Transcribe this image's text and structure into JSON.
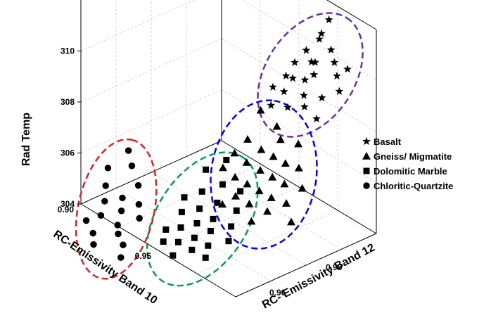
{
  "chart_data": {
    "type": "scatter",
    "title": "",
    "zlabel": "Rad Temp",
    "xlabel": "RC-Emissivity Band 10",
    "ylabel": "RC- Emissivity Band 12",
    "z_ticks": [
      "304",
      "306",
      "308",
      "310"
    ],
    "x_ticks": [
      "0.90",
      "0.95"
    ],
    "y_ticks": [
      "0.96",
      "0.98"
    ],
    "grid": true,
    "legend_position": "right",
    "series": [
      {
        "name": "Basalt",
        "marker": "star",
        "color": "#000000",
        "ellipse_color": "#7030a0",
        "points": [
          [
            0.973,
            0.998,
            311.5
          ],
          [
            0.97,
            0.997,
            310.9
          ],
          [
            0.978,
            0.996,
            310.6
          ],
          [
            0.965,
            0.999,
            310.4
          ],
          [
            0.982,
            0.995,
            310.3
          ],
          [
            0.975,
            0.992,
            310.2
          ],
          [
            0.962,
            0.996,
            310.0
          ],
          [
            0.985,
            0.998,
            310.0
          ],
          [
            0.969,
            0.994,
            309.9
          ],
          [
            0.976,
            0.991,
            309.8
          ],
          [
            0.98,
            0.997,
            309.6
          ],
          [
            0.96,
            0.993,
            309.6
          ],
          [
            0.972,
            0.99,
            309.5
          ],
          [
            0.987,
            0.994,
            309.4
          ],
          [
            0.966,
            0.989,
            309.4
          ],
          [
            0.983,
            0.99,
            309.2
          ],
          [
            0.958,
            0.991,
            309.1
          ],
          [
            0.975,
            0.988,
            309.1
          ],
          [
            0.964,
            0.987,
            308.9
          ],
          [
            0.979,
            0.986,
            308.9
          ],
          [
            0.955,
            0.988,
            308.7
          ],
          [
            0.97,
            0.985,
            308.6
          ],
          [
            0.985,
            0.987,
            308.6
          ],
          [
            0.961,
            0.984,
            308.4
          ]
        ]
      },
      {
        "name": "Gneiss/ Migmatite",
        "marker": "triangle",
        "color": "#000000",
        "ellipse_color": "#0000ff",
        "points": [
          [
            0.958,
            0.982,
            308.2
          ],
          [
            0.963,
            0.985,
            307.6
          ],
          [
            0.969,
            0.983,
            307.4
          ],
          [
            0.975,
            0.986,
            307.3
          ],
          [
            0.955,
            0.979,
            307.1
          ],
          [
            0.962,
            0.98,
            306.9
          ],
          [
            0.968,
            0.981,
            306.8
          ],
          [
            0.974,
            0.982,
            306.7
          ],
          [
            0.979,
            0.984,
            306.6
          ],
          [
            0.952,
            0.976,
            306.6
          ],
          [
            0.958,
            0.977,
            306.4
          ],
          [
            0.965,
            0.978,
            306.3
          ],
          [
            0.971,
            0.979,
            306.2
          ],
          [
            0.977,
            0.98,
            306.1
          ],
          [
            0.983,
            0.983,
            306.0
          ],
          [
            0.95,
            0.973,
            306.1
          ],
          [
            0.956,
            0.974,
            305.9
          ],
          [
            0.962,
            0.975,
            305.8
          ],
          [
            0.968,
            0.976,
            305.7
          ],
          [
            0.974,
            0.977,
            305.6
          ],
          [
            0.98,
            0.979,
            305.5
          ],
          [
            0.96,
            0.972,
            305.4
          ],
          [
            0.967,
            0.973,
            305.3
          ],
          [
            0.975,
            0.975,
            305.2
          ],
          [
            0.985,
            0.978,
            305.0
          ],
          [
            0.955,
            0.97,
            305.0
          ],
          [
            0.972,
            0.971,
            304.9
          ]
        ]
      },
      {
        "name": "Dolomitic Marble",
        "marker": "square",
        "color": "#000000",
        "ellipse_color": "#00a050",
        "points": [
          [
            0.954,
            0.972,
            306.6
          ],
          [
            0.948,
            0.968,
            306.2
          ],
          [
            0.957,
            0.969,
            305.9
          ],
          [
            0.963,
            0.972,
            305.7
          ],
          [
            0.951,
            0.965,
            305.6
          ],
          [
            0.959,
            0.966,
            305.4
          ],
          [
            0.945,
            0.962,
            305.3
          ],
          [
            0.966,
            0.969,
            305.2
          ],
          [
            0.953,
            0.963,
            305.1
          ],
          [
            0.96,
            0.964,
            304.9
          ],
          [
            0.947,
            0.96,
            304.9
          ],
          [
            0.968,
            0.966,
            304.8
          ],
          [
            0.955,
            0.961,
            304.7
          ],
          [
            0.962,
            0.962,
            304.6
          ],
          [
            0.95,
            0.958,
            304.5
          ],
          [
            0.97,
            0.964,
            304.4
          ],
          [
            0.957,
            0.959,
            304.3
          ],
          [
            0.944,
            0.956,
            304.3
          ],
          [
            0.964,
            0.96,
            304.2
          ],
          [
            0.952,
            0.956,
            304.1
          ],
          [
            0.959,
            0.957,
            304.0
          ],
          [
            0.946,
            0.954,
            304.0
          ],
          [
            0.966,
            0.958,
            303.9
          ],
          [
            0.954,
            0.953,
            303.8
          ]
        ]
      },
      {
        "name": "Chloritic-Quartzite",
        "marker": "circle",
        "color": "#000000",
        "ellipse_color": "#e02020",
        "points": [
          [
            0.918,
            0.957,
            306.4
          ],
          [
            0.922,
            0.956,
            306.0
          ],
          [
            0.912,
            0.953,
            305.7
          ],
          [
            0.928,
            0.955,
            305.5
          ],
          [
            0.916,
            0.95,
            305.3
          ],
          [
            0.925,
            0.951,
            305.1
          ],
          [
            0.932,
            0.953,
            305.0
          ],
          [
            0.919,
            0.948,
            304.9
          ],
          [
            0.928,
            0.949,
            304.8
          ],
          [
            0.936,
            0.951,
            304.7
          ],
          [
            0.922,
            0.945,
            304.6
          ],
          [
            0.931,
            0.946,
            304.5
          ],
          [
            0.918,
            0.942,
            304.4
          ],
          [
            0.935,
            0.944,
            304.4
          ],
          [
            0.926,
            0.94,
            304.3
          ],
          [
            0.94,
            0.943,
            304.2
          ],
          [
            0.93,
            0.938,
            304.1
          ],
          [
            0.944,
            0.94,
            304.0
          ]
        ]
      }
    ]
  }
}
